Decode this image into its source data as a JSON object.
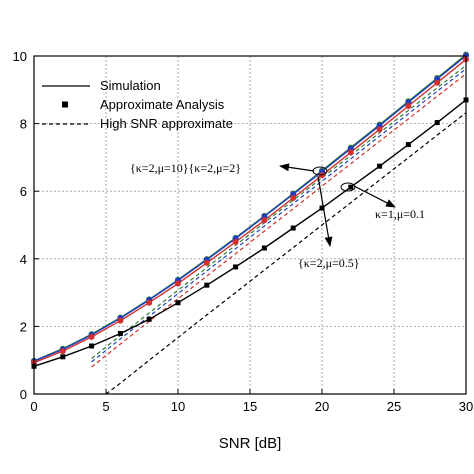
{
  "chart_data": {
    "type": "line",
    "title": "",
    "xlabel": "SNR [dB]",
    "ylabel": "",
    "xlim": [
      0,
      30
    ],
    "ylim": [
      0,
      10
    ],
    "xticks": [
      0,
      5,
      10,
      15,
      20,
      25,
      30
    ],
    "yticks": [
      0,
      2,
      4,
      6,
      8,
      10
    ],
    "grid": true,
    "legend": {
      "placement": "top-left",
      "entries": [
        {
          "label": "Simulation",
          "style": "solid-line"
        },
        {
          "label": "Approximate Analysis",
          "style": "square-marker"
        },
        {
          "label": "High SNR approximate",
          "style": "dashed-line"
        }
      ]
    },
    "series": [
      {
        "color": "#2e7d32",
        "marker": "circle",
        "exact": {
          "x": [
            0,
            2,
            4,
            6,
            8,
            10,
            12,
            14,
            16,
            18,
            20,
            22,
            24,
            26,
            28,
            30
          ],
          "y": [
            0.98,
            1.34,
            1.77,
            2.26,
            2.8,
            3.38,
            3.99,
            4.62,
            5.27,
            5.93,
            6.61,
            7.29,
            7.97,
            8.66,
            9.35,
            10.04
          ]
        },
        "high_snr": {
          "x": [
            4,
            6,
            8,
            10,
            12,
            14,
            16,
            18,
            20,
            22,
            24,
            26,
            28,
            30
          ],
          "y": [
            1.05,
            1.73,
            2.4,
            3.07,
            3.74,
            4.4,
            5.07,
            5.73,
            6.4,
            7.06,
            7.73,
            8.39,
            9.06,
            9.72
          ]
        }
      },
      {
        "color": "#1f3fbf",
        "marker": "circle",
        "exact": {
          "x": [
            0,
            2,
            4,
            6,
            8,
            10,
            12,
            14,
            16,
            18,
            20,
            22,
            24,
            26,
            28,
            30
          ],
          "y": [
            0.97,
            1.32,
            1.75,
            2.24,
            2.78,
            3.36,
            3.97,
            4.6,
            5.25,
            5.91,
            6.58,
            7.26,
            7.94,
            8.63,
            9.32,
            10.01
          ]
        },
        "high_snr": {
          "x": [
            4,
            6,
            8,
            10,
            12,
            14,
            16,
            18,
            20,
            22,
            24,
            26,
            28,
            30
          ],
          "y": [
            0.95,
            1.63,
            2.3,
            2.97,
            3.64,
            4.3,
            4.97,
            5.63,
            6.3,
            6.96,
            7.63,
            8.29,
            8.96,
            9.62
          ]
        }
      },
      {
        "color": "#d32f2f",
        "marker": "circle",
        "exact": {
          "x": [
            0,
            2,
            4,
            6,
            8,
            10,
            12,
            14,
            16,
            18,
            20,
            22,
            24,
            26,
            28,
            30
          ],
          "y": [
            0.93,
            1.27,
            1.69,
            2.17,
            2.7,
            3.27,
            3.88,
            4.5,
            5.14,
            5.8,
            6.47,
            7.15,
            7.83,
            8.52,
            9.21,
            9.9
          ]
        },
        "high_snr": {
          "x": [
            4,
            6,
            8,
            10,
            12,
            14,
            16,
            18,
            20,
            22,
            24,
            26,
            28,
            30
          ],
          "y": [
            0.8,
            1.48,
            2.15,
            2.82,
            3.49,
            4.15,
            4.82,
            5.48,
            6.15,
            6.81,
            7.48,
            8.14,
            8.81,
            9.47
          ]
        }
      },
      {
        "color": "#000000",
        "marker": "square",
        "exact": {
          "x": [
            0,
            2,
            4,
            6,
            8,
            10,
            12,
            14,
            16,
            18,
            20,
            22,
            24,
            26,
            28,
            30
          ],
          "y": [
            0.82,
            1.1,
            1.42,
            1.79,
            2.21,
            2.7,
            3.22,
            3.76,
            4.32,
            4.91,
            5.5,
            6.12,
            6.74,
            7.38,
            8.03,
            8.7
          ]
        },
        "high_snr": {
          "x": [
            5,
            6,
            8,
            10,
            12,
            14,
            16,
            18,
            20,
            22,
            24,
            26,
            28,
            30
          ],
          "y": [
            0.0,
            0.32,
            1.0,
            1.67,
            2.34,
            3.0,
            3.67,
            4.33,
            5.0,
            5.66,
            6.33,
            6.99,
            7.66,
            8.32
          ]
        }
      }
    ],
    "annotations": [
      {
        "text": "{κ=2,μ=10}{κ=2,μ=2}",
        "target": [
          20,
          6.6
        ]
      },
      {
        "text": "κ=1,μ=0.1",
        "target": [
          22,
          6.1
        ]
      },
      {
        "text": "{κ=2,μ=0.5}",
        "target": [
          20,
          6.6
        ]
      }
    ]
  }
}
